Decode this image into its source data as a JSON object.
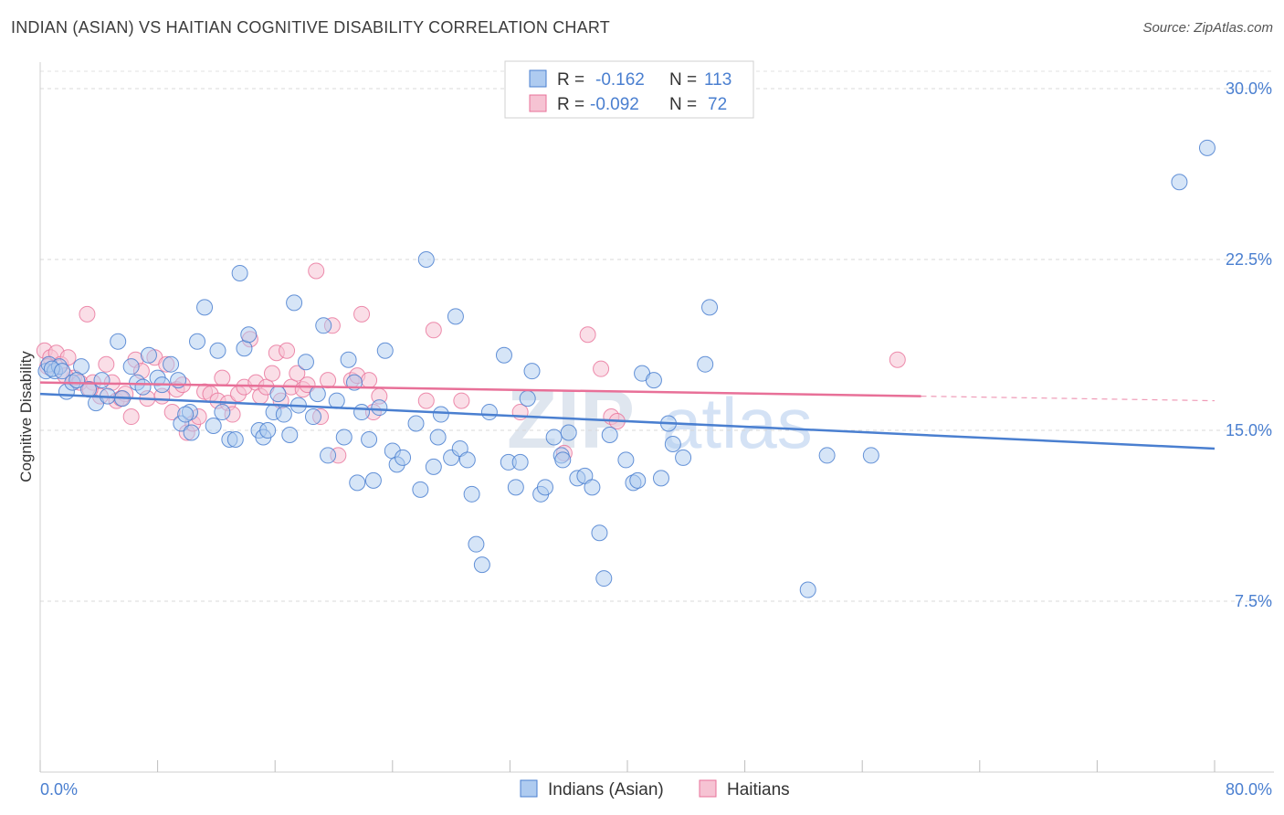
{
  "title": "INDIAN (ASIAN) VS HAITIAN COGNITIVE DISABILITY CORRELATION CHART",
  "source": "Source: ZipAtlas.com",
  "watermark": "ZIPatlas",
  "legend": {
    "rows": [
      {
        "r_label": "R =",
        "r_value": "-0.162",
        "n_label": "N =",
        "n_value": "113",
        "color": "#4a7fd0",
        "fill": "#aecbf0"
      },
      {
        "r_label": "R =",
        "r_value": "-0.092",
        "n_label": "N =",
        "n_value": "72",
        "color": "#e87098",
        "fill": "#f6c3d3"
      }
    ]
  },
  "bottom_legend": [
    "Indians (Asian)",
    "Haitians"
  ],
  "colors": {
    "blue": "#4a7fd0",
    "blue_fill": "#aecbf0",
    "pink": "#e87098",
    "pink_fill": "#f6c3d3",
    "text_blue": "#4a7fd0"
  },
  "chart_data": {
    "type": "scatter",
    "title": "INDIAN (ASIAN) VS HAITIAN COGNITIVE DISABILITY CORRELATION CHART",
    "xlabel": "",
    "ylabel": "Cognitive Disability",
    "xlim": [
      0,
      80
    ],
    "ylim": [
      0,
      31.5
    ],
    "x_tick_labels": [
      "0.0%",
      "80.0%"
    ],
    "y_ticks": [
      7.5,
      15.0,
      22.5,
      30.0
    ],
    "y_tick_labels": [
      "7.5%",
      "15.0%",
      "22.5%",
      "30.0%"
    ],
    "grid": "horizontal dashed",
    "legend_position": "top-center",
    "series": [
      {
        "name": "Indians (Asian)",
        "color": "#4a7fd0",
        "trend": {
          "x": [
            0,
            80
          ],
          "y": [
            16.6,
            14.2
          ]
        },
        "points": [
          [
            0.4,
            17.6
          ],
          [
            0.6,
            17.9
          ],
          [
            1.0,
            17.6
          ],
          [
            1.3,
            17.8
          ],
          [
            1.8,
            16.7
          ],
          [
            2.2,
            17.1
          ],
          [
            2.8,
            17.8
          ],
          [
            3.3,
            16.8
          ],
          [
            3.8,
            16.2
          ],
          [
            4.2,
            17.2
          ],
          [
            4.6,
            16.5
          ],
          [
            5.3,
            18.9
          ],
          [
            5.6,
            16.4
          ],
          [
            6.2,
            17.8
          ],
          [
            6.6,
            17.1
          ],
          [
            7.0,
            16.9
          ],
          [
            7.4,
            18.3
          ],
          [
            8.0,
            17.3
          ],
          [
            8.3,
            17.0
          ],
          [
            8.9,
            17.9
          ],
          [
            9.4,
            17.2
          ],
          [
            9.6,
            15.3
          ],
          [
            10.2,
            15.8
          ],
          [
            10.3,
            14.9
          ],
          [
            10.7,
            18.9
          ],
          [
            11.2,
            20.4
          ],
          [
            11.8,
            15.2
          ],
          [
            12.1,
            18.5
          ],
          [
            12.4,
            15.8
          ],
          [
            12.9,
            14.6
          ],
          [
            13.3,
            14.6
          ],
          [
            13.6,
            21.9
          ],
          [
            13.9,
            18.6
          ],
          [
            14.2,
            19.2
          ],
          [
            14.9,
            15.0
          ],
          [
            15.2,
            14.7
          ],
          [
            15.5,
            15.0
          ],
          [
            15.9,
            15.8
          ],
          [
            16.2,
            16.6
          ],
          [
            16.6,
            15.7
          ],
          [
            17.0,
            14.8
          ],
          [
            17.3,
            20.6
          ],
          [
            17.6,
            16.1
          ],
          [
            18.1,
            18.0
          ],
          [
            18.6,
            15.6
          ],
          [
            18.9,
            16.6
          ],
          [
            19.3,
            19.6
          ],
          [
            19.6,
            13.9
          ],
          [
            20.2,
            16.3
          ],
          [
            20.7,
            14.7
          ],
          [
            21.0,
            18.1
          ],
          [
            21.4,
            17.1
          ],
          [
            21.6,
            12.7
          ],
          [
            21.9,
            15.8
          ],
          [
            22.4,
            14.6
          ],
          [
            22.7,
            12.8
          ],
          [
            23.1,
            16.0
          ],
          [
            23.5,
            18.5
          ],
          [
            24.0,
            14.1
          ],
          [
            24.3,
            13.5
          ],
          [
            24.7,
            13.8
          ],
          [
            25.6,
            15.3
          ],
          [
            25.9,
            12.4
          ],
          [
            26.3,
            22.5
          ],
          [
            26.8,
            13.4
          ],
          [
            27.1,
            14.7
          ],
          [
            27.3,
            15.7
          ],
          [
            28.0,
            13.8
          ],
          [
            28.3,
            20.0
          ],
          [
            28.6,
            14.2
          ],
          [
            29.1,
            13.7
          ],
          [
            29.4,
            12.2
          ],
          [
            29.7,
            10.0
          ],
          [
            30.1,
            9.1
          ],
          [
            30.6,
            15.8
          ],
          [
            31.6,
            18.3
          ],
          [
            31.9,
            13.6
          ],
          [
            32.4,
            12.5
          ],
          [
            32.7,
            13.6
          ],
          [
            33.2,
            16.4
          ],
          [
            33.5,
            17.6
          ],
          [
            34.1,
            12.2
          ],
          [
            34.4,
            12.5
          ],
          [
            35.0,
            14.7
          ],
          [
            35.5,
            13.9
          ],
          [
            35.6,
            13.7
          ],
          [
            36.0,
            14.9
          ],
          [
            36.6,
            12.9
          ],
          [
            37.1,
            13.0
          ],
          [
            37.6,
            12.5
          ],
          [
            38.1,
            10.5
          ],
          [
            38.4,
            8.5
          ],
          [
            38.8,
            14.8
          ],
          [
            39.9,
            13.7
          ],
          [
            40.4,
            12.7
          ],
          [
            40.7,
            12.8
          ],
          [
            41.0,
            17.5
          ],
          [
            41.8,
            17.2
          ],
          [
            42.3,
            12.9
          ],
          [
            42.8,
            15.3
          ],
          [
            43.1,
            14.4
          ],
          [
            43.8,
            13.8
          ],
          [
            45.3,
            17.9
          ],
          [
            45.6,
            20.4
          ],
          [
            52.3,
            8.0
          ],
          [
            53.6,
            13.9
          ],
          [
            56.6,
            13.9
          ],
          [
            77.6,
            25.9
          ],
          [
            79.5,
            27.4
          ],
          [
            0.8,
            17.7
          ],
          [
            1.5,
            17.6
          ],
          [
            2.5,
            17.2
          ],
          [
            9.9,
            15.7
          ]
        ]
      },
      {
        "name": "Haitians",
        "color": "#e87098",
        "trend": {
          "x": [
            0,
            60
          ],
          "y": [
            17.1,
            16.5
          ]
        },
        "trend_dashed": {
          "x": [
            60,
            80
          ],
          "y": [
            16.5,
            16.3
          ]
        },
        "points": [
          [
            0.3,
            18.5
          ],
          [
            0.7,
            18.2
          ],
          [
            1.1,
            18.4
          ],
          [
            1.4,
            17.9
          ],
          [
            1.9,
            18.2
          ],
          [
            2.3,
            17.3
          ],
          [
            2.7,
            17.1
          ],
          [
            3.2,
            20.1
          ],
          [
            3.6,
            17.1
          ],
          [
            4.1,
            16.5
          ],
          [
            4.5,
            17.9
          ],
          [
            4.9,
            17.1
          ],
          [
            5.2,
            16.3
          ],
          [
            5.8,
            16.6
          ],
          [
            6.2,
            15.6
          ],
          [
            6.5,
            18.1
          ],
          [
            6.9,
            17.6
          ],
          [
            7.3,
            16.4
          ],
          [
            7.8,
            18.2
          ],
          [
            8.3,
            16.5
          ],
          [
            8.6,
            17.9
          ],
          [
            9.0,
            15.8
          ],
          [
            9.3,
            16.8
          ],
          [
            9.7,
            17.0
          ],
          [
            10.0,
            14.9
          ],
          [
            10.4,
            15.3
          ],
          [
            10.8,
            15.6
          ],
          [
            11.2,
            16.7
          ],
          [
            11.6,
            16.6
          ],
          [
            12.1,
            16.3
          ],
          [
            12.4,
            17.3
          ],
          [
            12.8,
            16.2
          ],
          [
            13.1,
            15.7
          ],
          [
            13.5,
            16.6
          ],
          [
            13.9,
            16.9
          ],
          [
            14.3,
            19.0
          ],
          [
            14.7,
            17.1
          ],
          [
            15.0,
            16.5
          ],
          [
            15.4,
            16.9
          ],
          [
            15.8,
            17.5
          ],
          [
            16.1,
            18.4
          ],
          [
            16.4,
            16.3
          ],
          [
            16.8,
            18.5
          ],
          [
            17.1,
            16.9
          ],
          [
            17.5,
            17.5
          ],
          [
            17.9,
            16.8
          ],
          [
            18.2,
            17.0
          ],
          [
            18.8,
            22.0
          ],
          [
            19.1,
            15.6
          ],
          [
            19.6,
            17.2
          ],
          [
            19.9,
            19.6
          ],
          [
            20.3,
            13.9
          ],
          [
            21.2,
            17.2
          ],
          [
            21.6,
            17.4
          ],
          [
            21.9,
            20.1
          ],
          [
            22.4,
            17.2
          ],
          [
            22.7,
            15.8
          ],
          [
            23.1,
            16.5
          ],
          [
            26.3,
            16.3
          ],
          [
            26.8,
            19.4
          ],
          [
            28.7,
            16.3
          ],
          [
            32.7,
            15.8
          ],
          [
            35.7,
            14.0
          ],
          [
            37.3,
            19.2
          ],
          [
            38.2,
            17.7
          ],
          [
            38.9,
            15.6
          ],
          [
            39.3,
            15.4
          ],
          [
            58.4,
            18.1
          ],
          [
            0.5,
            17.8
          ],
          [
            1.7,
            17.4
          ],
          [
            3.4,
            16.8
          ],
          [
            5.5,
            16.4
          ]
        ]
      }
    ]
  }
}
